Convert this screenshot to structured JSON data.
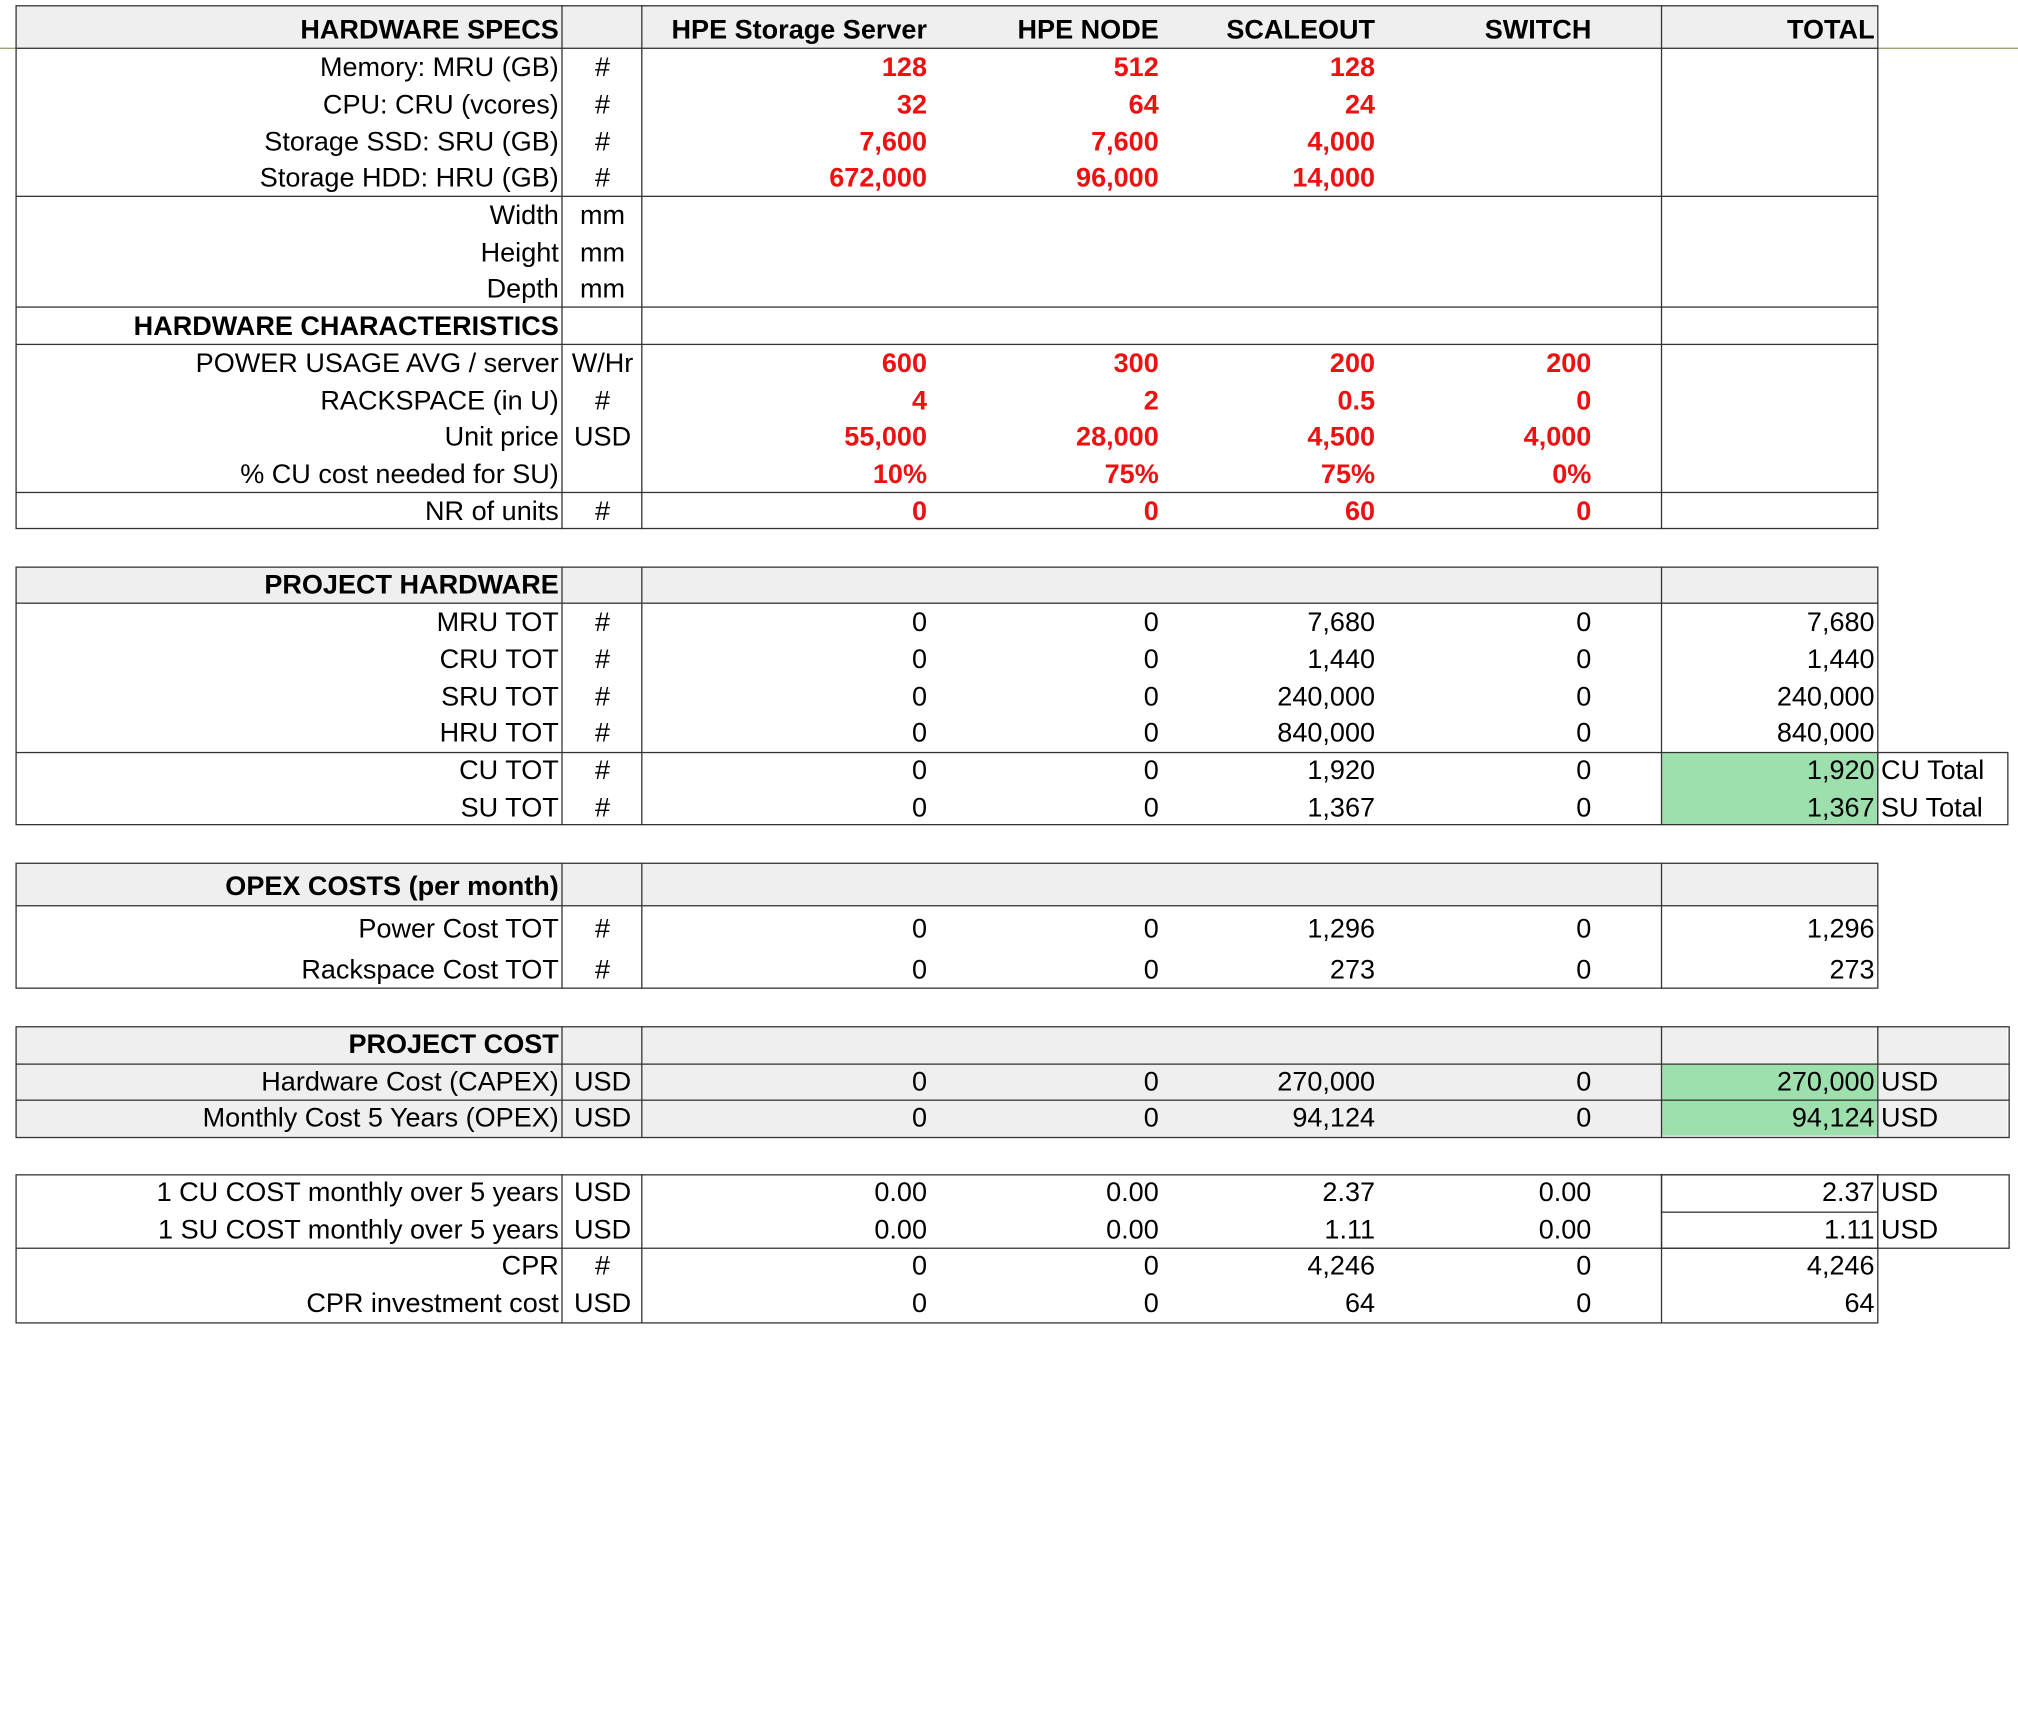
{
  "columns": {
    "col1": "HPE Storage Server",
    "col2": "HPE NODE",
    "col3": "SCALEOUT",
    "col4": "SWITCH",
    "total": "TOTAL"
  },
  "hardware_specs": {
    "title": "HARDWARE SPECS",
    "rows": [
      {
        "label": "Memory: MRU (GB)",
        "unit": "#",
        "v": [
          "128",
          "512",
          "128",
          ""
        ]
      },
      {
        "label": "CPU: CRU (vcores)",
        "unit": "#",
        "v": [
          "32",
          "64",
          "24",
          ""
        ]
      },
      {
        "label": "Storage SSD: SRU (GB)",
        "unit": "#",
        "v": [
          "7,600",
          "7,600",
          "4,000",
          ""
        ]
      },
      {
        "label": "Storage HDD: HRU (GB)",
        "unit": "#",
        "v": [
          "672,000",
          "96,000",
          "14,000",
          ""
        ]
      }
    ],
    "dims": [
      {
        "label": "Width",
        "unit": "mm"
      },
      {
        "label": "Height",
        "unit": "mm"
      },
      {
        "label": "Depth",
        "unit": "mm"
      }
    ]
  },
  "hardware_characteristics": {
    "title": "HARDWARE CHARACTERISTICS",
    "rows": [
      {
        "label": "POWER USAGE AVG / server",
        "unit": "W/Hr",
        "v": [
          "600",
          "300",
          "200",
          "200"
        ]
      },
      {
        "label": "RACKSPACE (in U)",
        "unit": "#",
        "v": [
          "4",
          "2",
          "0.5",
          "0"
        ]
      },
      {
        "label": "Unit price",
        "unit": "USD",
        "v": [
          "55,000",
          "28,000",
          "4,500",
          "4,000"
        ]
      },
      {
        "label": "% CU cost needed for SU)",
        "unit": "",
        "v": [
          "10%",
          "75%",
          "75%",
          "0%"
        ]
      }
    ],
    "units_row": {
      "label": "NR of units",
      "unit": "#",
      "v": [
        "0",
        "0",
        "60",
        "0"
      ]
    }
  },
  "project_hardware": {
    "title": "PROJECT HARDWARE",
    "rows": [
      {
        "label": "MRU TOT",
        "unit": "#",
        "v": [
          "0",
          "0",
          "7,680",
          "0"
        ],
        "total": "7,680"
      },
      {
        "label": "CRU TOT",
        "unit": "#",
        "v": [
          "0",
          "0",
          "1,440",
          "0"
        ],
        "total": "1,440"
      },
      {
        "label": "SRU TOT",
        "unit": "#",
        "v": [
          "0",
          "0",
          "240,000",
          "0"
        ],
        "total": "240,000"
      },
      {
        "label": "HRU TOT",
        "unit": "#",
        "v": [
          "0",
          "0",
          "840,000",
          "0"
        ],
        "total": "840,000"
      },
      {
        "label": "CU TOT",
        "unit": "#",
        "v": [
          "0",
          "0",
          "1,920",
          "0"
        ],
        "total": "1,920",
        "note": "CU Total"
      },
      {
        "label": "SU TOT",
        "unit": "#",
        "v": [
          "0",
          "0",
          "1,367",
          "0"
        ],
        "total": "1,367",
        "note": "SU Total"
      }
    ]
  },
  "opex": {
    "title": "OPEX COSTS (per month)",
    "rows": [
      {
        "label": "Power Cost TOT",
        "unit": "#",
        "v": [
          "0",
          "0",
          "1,296",
          "0"
        ],
        "total": "1,296"
      },
      {
        "label": "Rackspace Cost TOT",
        "unit": "#",
        "v": [
          "0",
          "0",
          "273",
          "0"
        ],
        "total": "273"
      }
    ]
  },
  "project_cost": {
    "title": "PROJECT COST",
    "rows": [
      {
        "label": "Hardware Cost (CAPEX)",
        "unit": "USD",
        "v": [
          "0",
          "0",
          "270,000",
          "0"
        ],
        "total": "270,000",
        "note": "USD"
      },
      {
        "label": "Monthly Cost 5 Years (OPEX)",
        "unit": "USD",
        "v": [
          "0",
          "0",
          "94,124",
          "0"
        ],
        "total": "94,124",
        "note": "USD"
      }
    ]
  },
  "unit_costs": {
    "rows": [
      {
        "label": "1 CU COST monthly over 5 years",
        "unit": "USD",
        "v": [
          "0.00",
          "0.00",
          "2.37",
          "0.00"
        ],
        "total": "2.37",
        "note": "USD"
      },
      {
        "label": "1 SU COST monthly over 5 years",
        "unit": "USD",
        "v": [
          "0.00",
          "0.00",
          "1.11",
          "0.00"
        ],
        "total": "1.11",
        "note": "USD"
      },
      {
        "label": "CPR",
        "unit": "#",
        "v": [
          "0",
          "0",
          "4,246",
          "0"
        ],
        "total": "4,246"
      },
      {
        "label": "CPR investment cost",
        "unit": "USD",
        "v": [
          "0",
          "0",
          "64",
          "0"
        ],
        "total": "64"
      }
    ]
  },
  "colors": {
    "input_red": "#ee1111",
    "total_green": "#9ddfad",
    "header_grey": "#efefef"
  }
}
